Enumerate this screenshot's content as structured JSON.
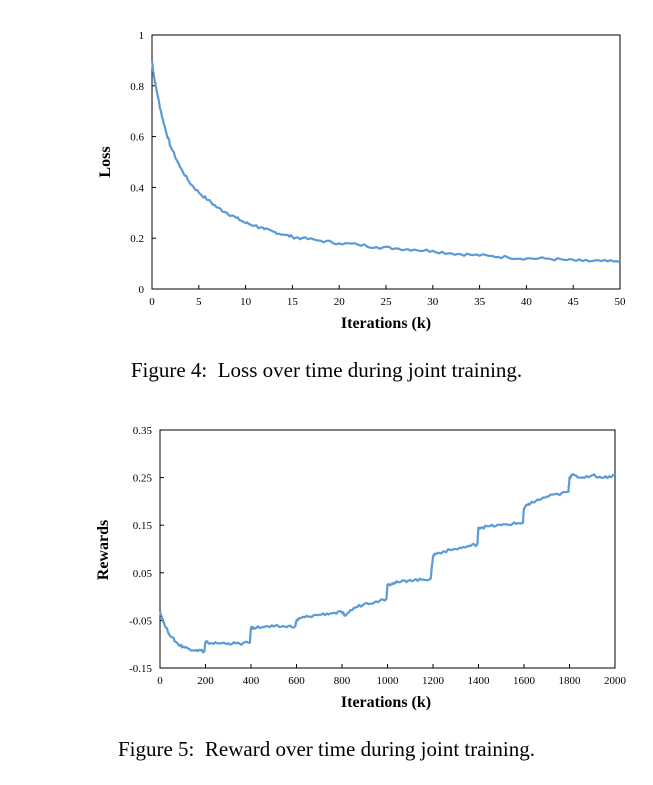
{
  "figures": [
    {
      "caption": "Figure 4:  Loss over time during joint training."
    },
    {
      "caption": "Figure 5:  Reward over time during joint training."
    }
  ],
  "chart_data": [
    {
      "type": "line",
      "title": "",
      "xlabel": "Iterations (k)",
      "ylabel": "Loss",
      "xlim": [
        0,
        50
      ],
      "ylim": [
        0,
        1
      ],
      "xticks": [
        0,
        5,
        10,
        15,
        20,
        25,
        30,
        35,
        40,
        45,
        50
      ],
      "yticks": [
        0,
        0.2,
        0.4,
        0.6,
        0.8,
        1
      ],
      "ytick_labels": [
        "0",
        "0.2",
        "0.4",
        "0.6",
        "0.8",
        "1"
      ],
      "grid": false,
      "legend": "none",
      "color": "#5b9bd5",
      "series": [
        {
          "x": [
            0,
            0.2,
            0.5,
            1,
            1.5,
            2,
            3,
            4,
            5,
            6,
            7,
            8,
            9,
            10,
            11,
            12,
            13,
            14,
            15,
            16,
            18,
            20,
            22,
            24,
            26,
            28,
            30,
            32,
            34,
            36,
            38,
            40,
            42,
            44,
            46,
            48,
            50
          ],
          "values": [
            0.9,
            0.84,
            0.78,
            0.69,
            0.62,
            0.56,
            0.48,
            0.42,
            0.38,
            0.35,
            0.32,
            0.3,
            0.28,
            0.26,
            0.25,
            0.235,
            0.225,
            0.215,
            0.205,
            0.2,
            0.19,
            0.18,
            0.175,
            0.165,
            0.16,
            0.155,
            0.15,
            0.14,
            0.135,
            0.13,
            0.125,
            0.12,
            0.12,
            0.115,
            0.11,
            0.11,
            0.105
          ]
        }
      ]
    },
    {
      "type": "line",
      "title": "",
      "xlabel": "Iterations (k)",
      "ylabel": "Rewards",
      "xlim": [
        0,
        2000
      ],
      "ylim": [
        -0.15,
        0.35
      ],
      "xticks": [
        0,
        200,
        400,
        600,
        800,
        1000,
        1200,
        1400,
        1600,
        1800,
        2000
      ],
      "yticks": [
        -0.15,
        -0.05,
        0.05,
        0.15,
        0.25,
        0.35
      ],
      "ytick_labels": [
        "-0.15",
        "-0.05",
        "0.05",
        "0.15",
        "0.25",
        "0.35"
      ],
      "grid": false,
      "legend": "none",
      "color": "#5b9bd5",
      "series": [
        {
          "x": [
            0,
            20,
            50,
            80,
            100,
            130,
            160,
            195,
            200,
            210,
            250,
            300,
            350,
            395,
            400,
            410,
            450,
            500,
            550,
            595,
            600,
            620,
            650,
            700,
            750,
            800,
            810,
            850,
            900,
            950,
            995,
            1000,
            1020,
            1050,
            1100,
            1150,
            1190,
            1200,
            1210,
            1250,
            1300,
            1350,
            1395,
            1400,
            1410,
            1450,
            1500,
            1550,
            1595,
            1600,
            1620,
            1650,
            1700,
            1750,
            1795,
            1800,
            1810,
            1850,
            1900,
            1950,
            2000
          ],
          "values": [
            -0.03,
            -0.06,
            -0.085,
            -0.1,
            -0.105,
            -0.11,
            -0.112,
            -0.115,
            -0.095,
            -0.097,
            -0.098,
            -0.098,
            -0.099,
            -0.097,
            -0.065,
            -0.065,
            -0.064,
            -0.063,
            -0.063,
            -0.062,
            -0.05,
            -0.045,
            -0.042,
            -0.038,
            -0.035,
            -0.033,
            -0.04,
            -0.025,
            -0.015,
            -0.01,
            -0.005,
            0.025,
            0.028,
            0.03,
            0.035,
            0.035,
            0.038,
            0.085,
            0.09,
            0.095,
            0.1,
            0.105,
            0.11,
            0.145,
            0.145,
            0.148,
            0.15,
            0.153,
            0.155,
            0.185,
            0.195,
            0.2,
            0.21,
            0.215,
            0.22,
            0.25,
            0.255,
            0.25,
            0.255,
            0.25,
            0.255
          ]
        }
      ]
    }
  ]
}
